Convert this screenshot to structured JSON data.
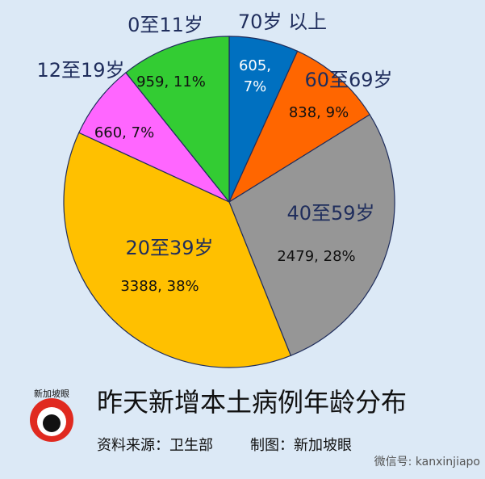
{
  "chart_data": {
    "type": "pie",
    "title": "昨天新增本土病例年龄分布",
    "categories": [
      "70岁 以上",
      "60至69岁",
      "40至59岁",
      "20至39岁",
      "12至19岁",
      "0至11岁"
    ],
    "values": [
      605,
      838,
      2479,
      3388,
      660,
      959
    ],
    "value_labels": [
      "605, 7%",
      "838, 9%",
      "2479, 28%",
      "3388, 38%",
      "660, 7%",
      "959, 11%"
    ],
    "colors": [
      "#0070c0",
      "#ff6600",
      "#969696",
      "#ffc000",
      "#ff66ff",
      "#33cc33"
    ]
  },
  "footer": {
    "source": "资料来源：卫生部",
    "credit": "制图：新加坡眼",
    "logo_text": "新加坡眼",
    "watermark": "微信号: kanxinjiapo"
  }
}
